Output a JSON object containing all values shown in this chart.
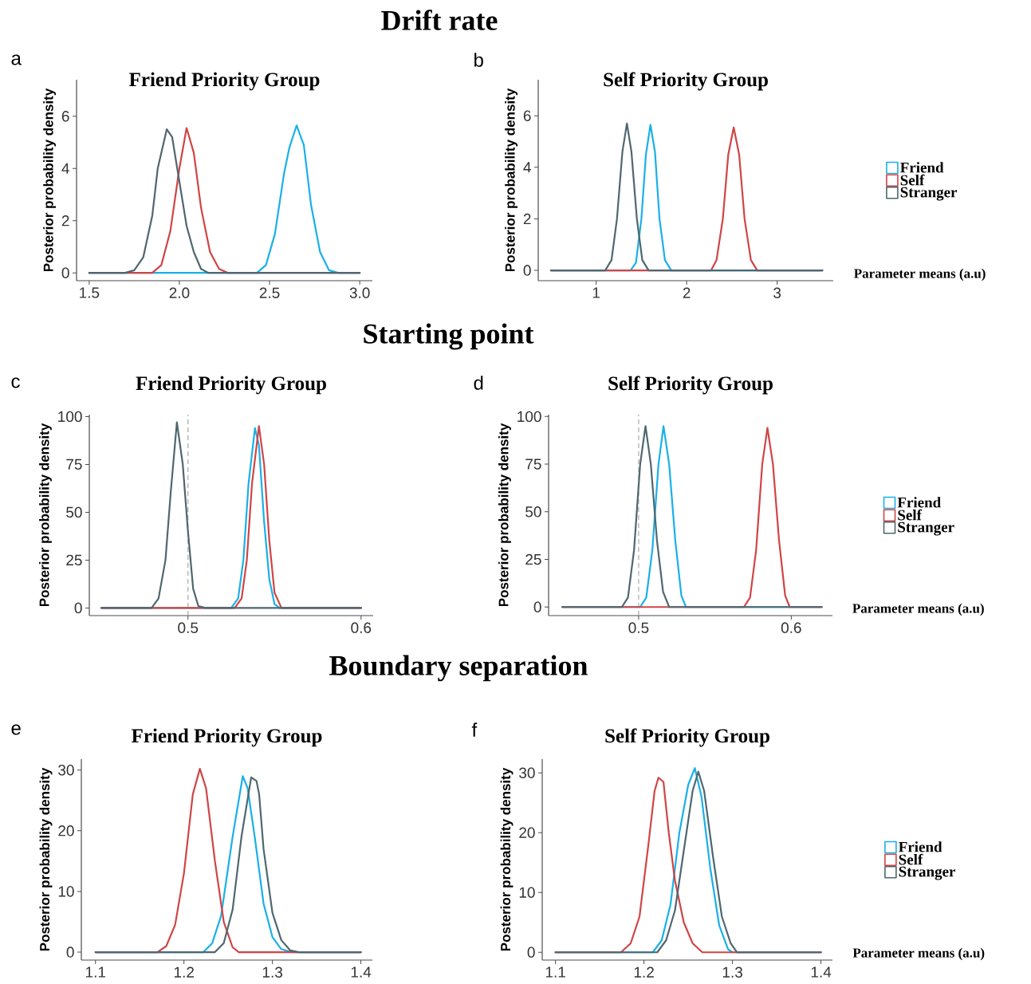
{
  "chart_data": [
    {
      "type": "line",
      "title": "Friend Priority Group",
      "ylabel": "Posterior probability density",
      "annotations": [
        "Drift rate",
        "a"
      ],
      "xlim": [
        1.43,
        3.07
      ],
      "ylim": [
        -0.3,
        7.4
      ],
      "xticks": [
        1.5,
        {
          "value": 2,
          "label": "2.0"
        },
        2.5,
        {
          "value": 3,
          "label": "3.0"
        }
      ],
      "yticks": [
        0,
        2,
        4,
        6
      ],
      "series": [
        {
          "color": "#1ab0e8",
          "x": [
            1.5,
            2.43,
            2.48,
            2.53,
            2.58,
            2.61,
            2.65,
            2.69,
            2.73,
            2.78,
            2.83,
            2.88,
            3.0
          ],
          "values": [
            0,
            0,
            0.3,
            1.5,
            3.8,
            4.8,
            5.65,
            4.9,
            2.6,
            0.8,
            0.1,
            0,
            0
          ]
        },
        {
          "color": "#d04545",
          "x": [
            1.5,
            1.85,
            1.9,
            1.95,
            2.0,
            2.04,
            2.08,
            2.12,
            2.17,
            2.22,
            2.27,
            3.0
          ],
          "values": [
            0,
            0,
            0.3,
            1.6,
            4.0,
            5.55,
            4.6,
            2.5,
            0.8,
            0.15,
            0,
            0
          ]
        },
        {
          "color": "#4f6770",
          "x": [
            1.5,
            1.7,
            1.75,
            1.8,
            1.85,
            1.88,
            1.93,
            1.96,
            2.0,
            2.04,
            2.08,
            2.12,
            2.16,
            3.0
          ],
          "values": [
            0,
            0,
            0.1,
            0.6,
            2.2,
            4.0,
            5.5,
            5.2,
            3.5,
            1.8,
            0.8,
            0.15,
            0,
            0
          ]
        }
      ]
    },
    {
      "type": "line",
      "title": "Self Priority Group",
      "ylabel": "Posterior probability density",
      "xlabel": "Parameter means (a.u)",
      "annotations": [
        "b"
      ],
      "legend": "right",
      "xlim": [
        0.36,
        3.62
      ],
      "ylim": [
        -0.4,
        7.4
      ],
      "xticks": [
        1,
        2,
        3
      ],
      "yticks": [
        0,
        2,
        4,
        6
      ],
      "series": [
        {
          "name": "Friend",
          "color": "#1ab0e8",
          "x": [
            0.5,
            1.38,
            1.44,
            1.5,
            1.55,
            1.6,
            1.65,
            1.7,
            1.76,
            1.83,
            3.5
          ],
          "values": [
            0,
            0,
            0.3,
            2.0,
            4.5,
            5.65,
            4.6,
            2.0,
            0.4,
            0,
            0
          ]
        },
        {
          "name": "Self",
          "color": "#d04545",
          "x": [
            0.5,
            2.27,
            2.33,
            2.4,
            2.46,
            2.52,
            2.58,
            2.64,
            2.71,
            2.78,
            3.5
          ],
          "values": [
            0,
            0,
            0.4,
            2.0,
            4.5,
            5.55,
            4.5,
            2.0,
            0.4,
            0,
            0
          ]
        },
        {
          "name": "Stranger",
          "color": "#4f6770",
          "x": [
            0.5,
            1.1,
            1.17,
            1.23,
            1.29,
            1.34,
            1.39,
            1.45,
            1.51,
            1.58,
            3.5
          ],
          "values": [
            0,
            0,
            0.4,
            2.0,
            4.6,
            5.7,
            4.6,
            2.0,
            0.4,
            0,
            0
          ]
        }
      ]
    },
    {
      "type": "line",
      "title": "Friend Priority Group",
      "ylabel": "Posterior probability density",
      "annotations": [
        "Starting point",
        "c"
      ],
      "xlim": [
        0.443,
        0.607
      ],
      "ylim": [
        -4,
        101
      ],
      "xticks": [
        0.5,
        0.6
      ],
      "yticks": [
        0,
        25,
        50,
        75,
        100
      ],
      "ref_lines": [
        {
          "axis": "x",
          "value": 0.5,
          "color": "#b0b0b0",
          "line_style": "dashed"
        }
      ],
      "series": [
        {
          "color": "#1ab0e8",
          "x": [
            0.45,
            0.525,
            0.529,
            0.532,
            0.535,
            0.5387,
            0.541,
            0.544,
            0.547,
            0.55,
            0.553,
            0.6
          ],
          "values": [
            0,
            0,
            5,
            25,
            65,
            94,
            85,
            45,
            15,
            2,
            0,
            0
          ]
        },
        {
          "color": "#d04545",
          "x": [
            0.45,
            0.527,
            0.531,
            0.534,
            0.537,
            0.541,
            0.544,
            0.547,
            0.55,
            0.554,
            0.6
          ],
          "values": [
            0,
            0,
            5,
            25,
            65,
            95,
            75,
            35,
            8,
            0,
            0
          ]
        },
        {
          "color": "#4f6770",
          "x": [
            0.45,
            0.479,
            0.483,
            0.487,
            0.49,
            0.4936,
            0.497,
            0.5,
            0.503,
            0.506,
            0.51,
            0.6
          ],
          "values": [
            0,
            0,
            5,
            25,
            60,
            97,
            75,
            40,
            10,
            1,
            0,
            0
          ]
        }
      ]
    },
    {
      "type": "line",
      "title": "Self Priority Group",
      "ylabel": "Posterior probability density",
      "xlabel": "Parameter means (a.u)",
      "annotations": [
        "d"
      ],
      "legend": "right",
      "xlim": [
        0.441,
        0.627
      ],
      "ylim": [
        -4.5,
        101
      ],
      "xticks": [
        0.5,
        0.6
      ],
      "yticks": [
        0,
        25,
        50,
        75,
        100
      ],
      "ref_lines": [
        {
          "axis": "x",
          "value": 0.5,
          "color": "#b0b0b0",
          "line_style": "dashed"
        }
      ],
      "series": [
        {
          "name": "Friend",
          "color": "#1ab0e8",
          "x": [
            0.45,
            0.501,
            0.505,
            0.509,
            0.513,
            0.5163,
            0.52,
            0.524,
            0.528,
            0.531,
            0.62
          ],
          "values": [
            0,
            0,
            5,
            30,
            75,
            95,
            75,
            35,
            6,
            0,
            0
          ]
        },
        {
          "name": "Self",
          "color": "#d04545",
          "x": [
            0.45,
            0.569,
            0.573,
            0.577,
            0.581,
            0.5844,
            0.588,
            0.592,
            0.596,
            0.599,
            0.62
          ],
          "values": [
            0,
            0,
            5,
            30,
            75,
            94,
            75,
            35,
            6,
            0,
            0
          ]
        },
        {
          "name": "Stranger",
          "color": "#4f6770",
          "x": [
            0.45,
            0.489,
            0.493,
            0.497,
            0.501,
            0.5045,
            0.508,
            0.512,
            0.516,
            0.52,
            0.62
          ],
          "values": [
            0,
            0,
            5,
            30,
            75,
            95,
            75,
            35,
            8,
            0,
            0
          ]
        }
      ]
    },
    {
      "type": "line",
      "title": "Friend Priority Group",
      "ylabel": "Posterior probability density",
      "annotations": [
        "Boundary separation",
        "e"
      ],
      "xlim": [
        1.084,
        1.413
      ],
      "ylim": [
        -1.3,
        31.8
      ],
      "xticks": [
        1.1,
        1.2,
        1.3,
        1.4
      ],
      "yticks": [
        0,
        10,
        20,
        30
      ],
      "series": [
        {
          "color": "#1ab0e8",
          "x": [
            1.1,
            1.222,
            1.232,
            1.242,
            1.25,
            1.255,
            1.2665,
            1.272,
            1.28,
            1.29,
            1.3,
            1.31,
            1.322,
            1.4
          ],
          "values": [
            0,
            0,
            1.5,
            6,
            14,
            19,
            29,
            27,
            19,
            8,
            2.5,
            0.5,
            0,
            0
          ]
        },
        {
          "color": "#d04545",
          "x": [
            1.1,
            1.17,
            1.18,
            1.19,
            1.2,
            1.21,
            1.218,
            1.225,
            1.235,
            1.245,
            1.255,
            1.262,
            1.4
          ],
          "values": [
            0,
            0,
            1,
            4.5,
            13,
            26,
            30.2,
            27,
            15,
            5,
            0.8,
            0,
            0
          ]
        },
        {
          "color": "#4f6770",
          "x": [
            1.1,
            1.235,
            1.245,
            1.255,
            1.265,
            1.276,
            1.282,
            1.285,
            1.29,
            1.3,
            1.31,
            1.32,
            1.33,
            1.4
          ],
          "values": [
            0,
            0,
            1.5,
            7,
            19,
            28.8,
            28.2,
            26,
            17,
            6.5,
            2,
            0.3,
            0,
            0
          ]
        }
      ]
    },
    {
      "type": "line",
      "title": "Self Priority Group",
      "ylabel": "Posterior probability density",
      "xlabel": "Parameter means (a.u)",
      "annotations": [
        "f"
      ],
      "legend": "right",
      "xlim": [
        1.085,
        1.413
      ],
      "ylim": [
        -1.3,
        32.3
      ],
      "xticks": [
        1.1,
        1.2,
        1.3,
        1.4
      ],
      "yticks": [
        0,
        10,
        20,
        30
      ],
      "series": [
        {
          "name": "Friend",
          "color": "#1ab0e8",
          "x": [
            1.1,
            1.21,
            1.22,
            1.23,
            1.24,
            1.25,
            1.2575,
            1.265,
            1.275,
            1.285,
            1.295,
            1.3,
            1.4
          ],
          "values": [
            0,
            0,
            2,
            8,
            20,
            28,
            30.8,
            26,
            14,
            4.5,
            0.5,
            0,
            0
          ]
        },
        {
          "name": "Self",
          "color": "#d04545",
          "x": [
            1.1,
            1.174,
            1.185,
            1.195,
            1.205,
            1.212,
            1.2164,
            1.222,
            1.228,
            1.235,
            1.245,
            1.255,
            1.266,
            1.4
          ],
          "values": [
            0,
            0,
            1.5,
            6,
            18,
            27,
            29.2,
            28.5,
            20,
            12,
            5,
            1.5,
            0,
            0
          ]
        },
        {
          "name": "Stranger",
          "color": "#4f6770",
          "x": [
            1.1,
            1.215,
            1.225,
            1.235,
            1.245,
            1.255,
            1.2614,
            1.268,
            1.278,
            1.288,
            1.298,
            1.305,
            1.4
          ],
          "values": [
            0,
            0,
            2,
            7,
            17,
            27,
            30.2,
            27,
            16,
            6,
            1.5,
            0,
            0
          ]
        }
      ]
    }
  ]
}
